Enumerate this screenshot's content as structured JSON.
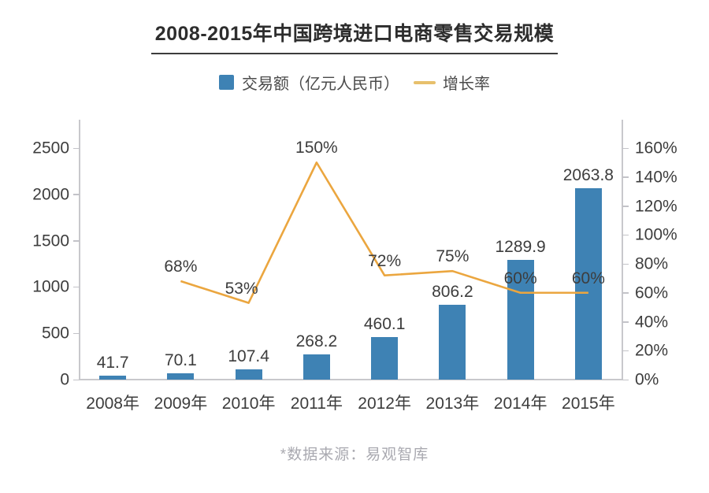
{
  "title": "2008-2015年中国跨境进口电商零售交易规模",
  "legend": [
    {
      "label": "交易额（亿元人民币）",
      "type": "bar",
      "color": "#3e82b4"
    },
    {
      "label": "增长率",
      "type": "line",
      "color": "#e7c06c"
    }
  ],
  "footer": "*数据来源：易观智库",
  "colors": {
    "bar": "#3e82b4",
    "line": "#eba63f",
    "legend_dash": "#e7c06c",
    "axis": "#c8c8cc",
    "label_text": "#3d3d3d",
    "footer_text": "#a9a9b0"
  },
  "chart_data": {
    "type": "bar",
    "title": "2008-2015年中国跨境进口电商零售交易规模",
    "categories": [
      "2008年",
      "2009年",
      "2010年",
      "2011年",
      "2012年",
      "2013年",
      "2014年",
      "2015年"
    ],
    "series": [
      {
        "name": "交易额（亿元人民币）",
        "type": "bar",
        "axis": "left",
        "values": [
          41.7,
          70.1,
          107.4,
          268.2,
          460.1,
          806.2,
          1289.9,
          2063.8
        ],
        "labels": [
          "41.7",
          "70.1",
          "107.4",
          "268.2",
          "460.1",
          "806.2",
          "1289.9",
          "2063.8"
        ]
      },
      {
        "name": "增长率",
        "type": "line",
        "axis": "right",
        "values": [
          null,
          68,
          53,
          150,
          72,
          75,
          60,
          60
        ],
        "labels": [
          "",
          "68%",
          "53%",
          "150%",
          "72%",
          "75%",
          "60%",
          "60%"
        ]
      }
    ],
    "left_axis": {
      "ticks": [
        "0",
        "500",
        "1000",
        "1500",
        "2000",
        "2500"
      ],
      "min": 0,
      "max": 2500
    },
    "right_axis": {
      "ticks": [
        "0%",
        "20%",
        "40%",
        "60%",
        "80%",
        "100%",
        "120%",
        "140%",
        "160%"
      ],
      "min": 0,
      "max": 160
    },
    "grid": false,
    "legend_position": "top",
    "source_note": "*数据来源：易观智库"
  }
}
